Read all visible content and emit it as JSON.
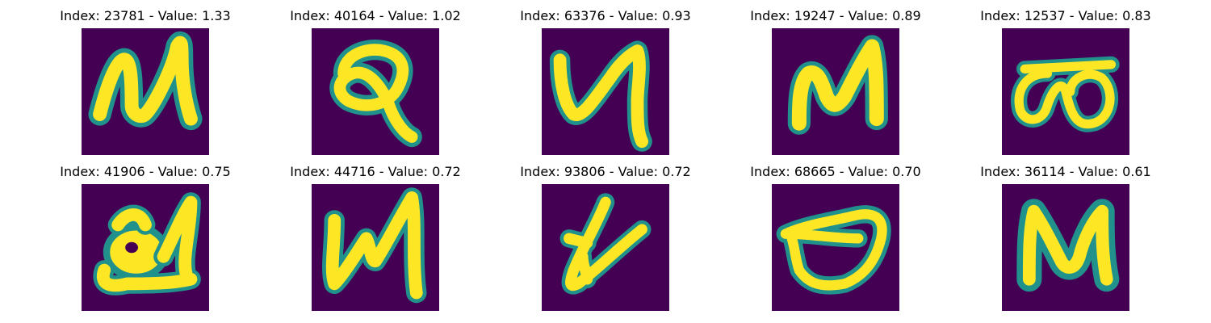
{
  "colors": {
    "background": "#440154",
    "stroke_edge": "#21918c",
    "stroke_mid": "#5ec962",
    "stroke_core": "#fde725"
  },
  "panels": [
    {
      "title": "Index: 23781 - Value: 1.33"
    },
    {
      "title": "Index: 40164 - Value: 1.02"
    },
    {
      "title": "Index: 63376 - Value: 0.93"
    },
    {
      "title": "Index: 19247 - Value: 0.89"
    },
    {
      "title": "Index: 12537 - Value: 0.83"
    },
    {
      "title": "Index: 41906 - Value: 0.75"
    },
    {
      "title": "Index: 44716 - Value: 0.72"
    },
    {
      "title": "Index: 93806 - Value: 0.72"
    },
    {
      "title": "Index: 68665 - Value: 0.70"
    },
    {
      "title": "Index: 36114 - Value: 0.61"
    }
  ]
}
